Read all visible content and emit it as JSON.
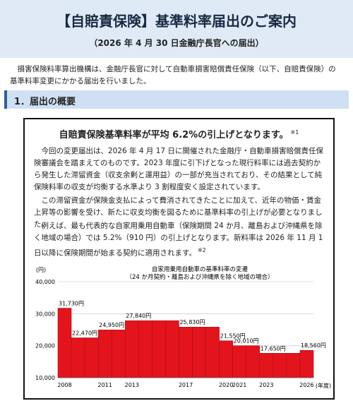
{
  "header": {
    "title": "【自賠責保険】基準料率届出のご案内",
    "subtitle": "（2026 年 4 月 30 日金融庁長官への届出）"
  },
  "intro": "損害保険料率算出機構は、金融庁長官に対して自動車損害賠償責任保険（以下、自賠責保険）の基準料率変更にかかる届出を行いました。",
  "section": {
    "heading": "1．届出の概要"
  },
  "box": {
    "heading": "自賠責保険基準料率が平均 6.2%の引上げとなります。",
    "heading_note": "※1",
    "paragraphs": [
      "今回の変更届出は、2026 年 4 月 17 日に開催された金融庁・自動車損害賠償責任保険審議会を踏まえてのものです。2023 年度に引下げとなった現行料率には過去契約から発生した滞留資金（収支余剰と運用益）の一部が充当されており、その結果として純保険料率の収支が均衡する水準より 3 割程度安く設定されています。",
      "この滞留資金が保険金支払によって費消されてきたことに加えて、近年の物価・賃金上昇等の影響を受け、新たに収支均衡を図るために基準料率の引上げが必要となりました。",
      "例えば、最も代表的な自家用乗用自動車（保険期間 24 か月、離島および沖縄県を除く地域の場合）では 5.2%（910 円）の引上げとなります。新料率は 2026 年 11 月 1 日以降に保険期間が始まる契約に適用されます。"
    ],
    "paragraph_note": "※2"
  },
  "chart_data": {
    "type": "bar",
    "title": "自家用乗用自動車の基準料率の変遷",
    "subtitle": "（24 か月契約・離島および沖縄県を除く地域の場合）",
    "y_label": "(円)",
    "x_label": "(年度)",
    "categories": [
      "2008",
      null,
      null,
      "2011",
      null,
      "2013",
      null,
      null,
      null,
      "2017",
      null,
      null,
      "2020",
      "2021",
      null,
      "2023",
      null,
      null,
      "2026"
    ],
    "values": [
      31730,
      22470,
      22470,
      24950,
      24950,
      27840,
      27840,
      27840,
      27840,
      25830,
      25830,
      25830,
      21550,
      20010,
      20010,
      17650,
      17650,
      17650,
      18560
    ],
    "value_labels": [
      "31,730円",
      "22,470円",
      null,
      "24,950円",
      null,
      "27,840円",
      null,
      null,
      null,
      "25,830円",
      null,
      null,
      "21,550円",
      "20,010円",
      null,
      "17,650円",
      null,
      null,
      "18,560円"
    ],
    "color": "#e3141c",
    "ylim": [
      10000,
      40000
    ],
    "yticks": [
      {
        "value": 10000,
        "label": "10,000"
      },
      {
        "value": 20000,
        "label": "20,000"
      },
      {
        "value": 30000,
        "label": "30,000"
      },
      {
        "value": 40000,
        "label": "40,000"
      }
    ],
    "grid": true
  }
}
